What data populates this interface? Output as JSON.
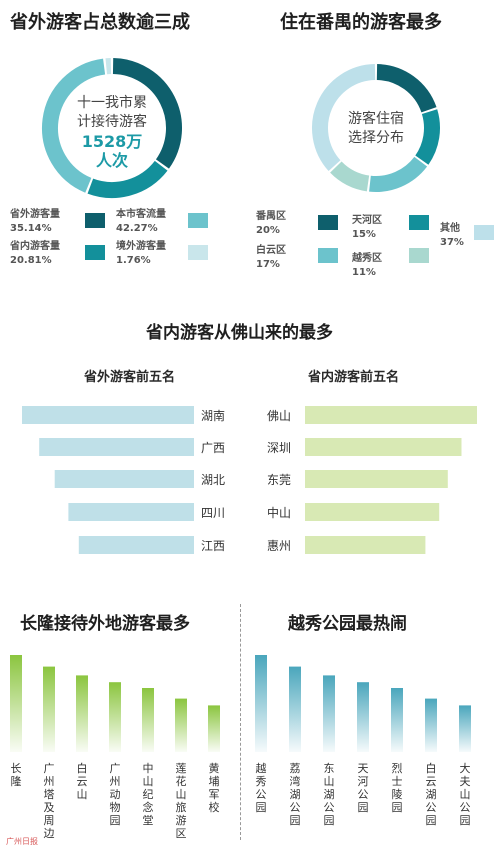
{
  "titles": {
    "donut1": "省外游客占总数逾三成",
    "donut2": "住在番禺的游客最多",
    "middle": "省内游客从佛山来的最多",
    "left_sub": "省外游客前五名",
    "right_sub": "省内游客前五名",
    "bars_left": "长隆接待外地游客最多",
    "bars_right": "越秀公园最热闹"
  },
  "donut1": {
    "center_line1": "十一我市累",
    "center_line2": "计接待游客",
    "center_number": "1528万",
    "center_unit": "人次"
  },
  "donut2": {
    "center_line1": "游客住宿",
    "center_line2": "选择分布"
  },
  "credit": "广州日报",
  "chart_data": [
    {
      "type": "pie",
      "title": "省外游客占总数逾三成",
      "slices": [
        {
          "label": "省外游客量",
          "display": "35.14%",
          "value": 35.14,
          "color": "#0e5f6c"
        },
        {
          "label": "省内游客量",
          "display": "20.81%",
          "value": 20.81,
          "color": "#13909b"
        },
        {
          "label": "本市客流量",
          "display": "42.27%",
          "value": 42.27,
          "color": "#6cc3cc"
        },
        {
          "label": "境外游客量",
          "display": "1.76%",
          "value": 1.76,
          "color": "#c9e6eb"
        }
      ]
    },
    {
      "type": "pie",
      "title": "住在番禺的游客最多",
      "slices": [
        {
          "label": "番禺区",
          "display": "20%",
          "value": 20,
          "color": "#0e5f6c"
        },
        {
          "label": "天河区",
          "display": "15%",
          "value": 15,
          "color": "#13909b"
        },
        {
          "label": "白云区",
          "display": "17%",
          "value": 17,
          "color": "#6cc3cc"
        },
        {
          "label": "越秀区",
          "display": "11%",
          "value": 11,
          "color": "#a9d8cf"
        },
        {
          "label": "其他",
          "display": "37%",
          "value": 37,
          "color": "#bde0ea"
        }
      ]
    },
    {
      "type": "bar",
      "title": "省外游客前五名",
      "orientation": "horizontal",
      "categories": [
        "湖南",
        "广西",
        "湖北",
        "四川",
        "江西"
      ],
      "values": [
        100,
        90,
        81,
        73,
        67
      ],
      "color": "#bfe0e8"
    },
    {
      "type": "bar",
      "title": "省内游客前五名",
      "orientation": "horizontal",
      "categories": [
        "佛山",
        "深圳",
        "东莞",
        "中山",
        "惠州"
      ],
      "values": [
        100,
        91,
        83,
        78,
        70
      ],
      "color": "#d8e9b4"
    },
    {
      "type": "bar",
      "title": "长隆接待外地游客最多",
      "categories": [
        "长隆",
        "广州塔及周边",
        "白云山",
        "广州动物园",
        "中山纪念堂",
        "莲花山旅游区",
        "黄埔军校"
      ],
      "values": [
        100,
        88,
        79,
        72,
        66,
        55,
        48
      ],
      "color": "#8bc53f"
    },
    {
      "type": "bar",
      "title": "越秀公园最热闹",
      "categories": [
        "越秀公园",
        "荔湾湖公园",
        "东山湖公园",
        "天河公园",
        "烈士陵园",
        "白云湖公园",
        "大夫山公园"
      ],
      "values": [
        100,
        88,
        79,
        72,
        66,
        55,
        48
      ],
      "color": "#4aa6bc"
    }
  ]
}
